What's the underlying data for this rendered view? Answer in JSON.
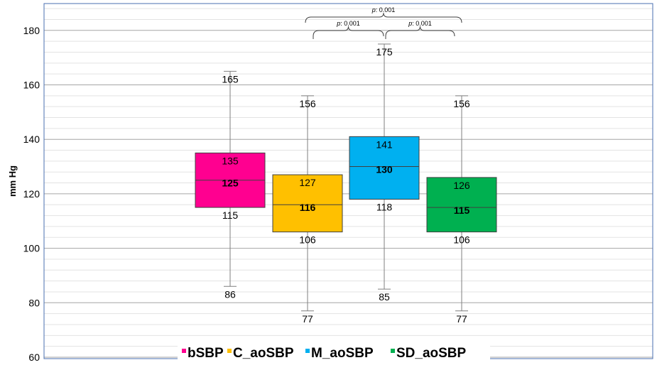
{
  "chart_data": {
    "type": "box",
    "title": "",
    "xlabel": "",
    "ylabel": "mm Hg",
    "ylim": [
      60,
      190
    ],
    "yticks": [
      60,
      80,
      100,
      120,
      140,
      160,
      180
    ],
    "grid": true,
    "legend_placement": "bottom",
    "series": [
      {
        "name": "bSBP",
        "color": "#ff0090",
        "min": 86,
        "q1": 115,
        "median": 125,
        "q3": 135,
        "max": 165
      },
      {
        "name": "C_aoSBP",
        "color": "#ffc000",
        "min": 77,
        "q1": 106,
        "median": 116,
        "q3": 127,
        "max": 156
      },
      {
        "name": "M_aoSBP",
        "color": "#00b0f0",
        "min": 85,
        "q1": 118,
        "median": 130,
        "q3": 141,
        "max": 175
      },
      {
        "name": "SD_aoSBP",
        "color": "#00b050",
        "min": 77,
        "q1": 106,
        "median": 115,
        "q3": 126,
        "max": 156
      }
    ],
    "annotations": [
      {
        "label_prefix": "p",
        "label_value": ": 0.001",
        "from": "C_aoSBP",
        "to": "SD_aoSBP"
      },
      {
        "label_prefix": "p",
        "label_value": ": 0.001",
        "from": "C_aoSBP",
        "to": "M_aoSBP"
      },
      {
        "label_prefix": "p",
        "label_value": ": 0.001",
        "from": "M_aoSBP",
        "to": "SD_aoSBP"
      }
    ]
  }
}
